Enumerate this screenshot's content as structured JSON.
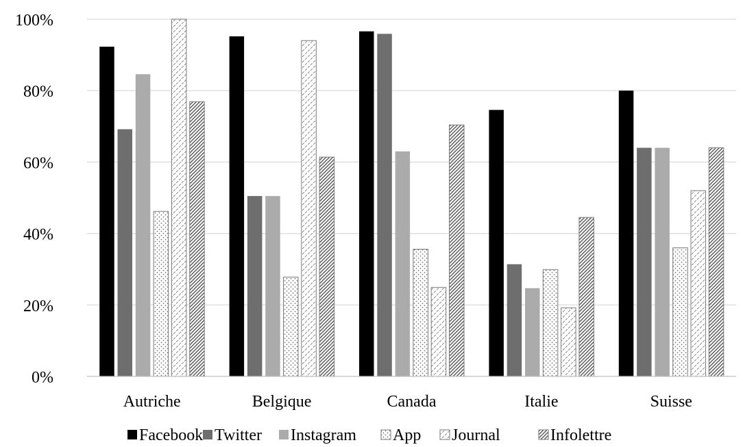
{
  "chart_data": {
    "type": "bar",
    "categories": [
      "Autriche",
      "Belgique",
      "Canada",
      "Italie",
      "Suisse"
    ],
    "series": [
      {
        "name": "Facebook",
        "values": [
          92.3,
          95.2,
          96.6,
          74.6,
          80.0
        ],
        "fill": "solid",
        "color": "#000000"
      },
      {
        "name": "Twitter",
        "values": [
          69.2,
          50.5,
          95.9,
          31.4,
          64.0
        ],
        "fill": "solid",
        "color": "#6e6e6e"
      },
      {
        "name": "Instagram",
        "values": [
          84.6,
          50.5,
          63.0,
          24.7,
          64.0
        ],
        "fill": "solid",
        "color": "#ababab"
      },
      {
        "name": "App",
        "values": [
          46.2,
          27.8,
          35.6,
          29.9,
          36.0
        ],
        "fill": "dots",
        "color": "#808080"
      },
      {
        "name": "Journal",
        "values": [
          100.0,
          94.0,
          24.9,
          19.2,
          52.0
        ],
        "fill": "dashes",
        "color": "#a0a0a0"
      },
      {
        "name": "Infolettre",
        "values": [
          76.9,
          61.4,
          70.4,
          44.5,
          64.0
        ],
        "fill": "diagonal",
        "color": "#555555"
      }
    ],
    "y_ticks": [
      "0%",
      "20%",
      "40%",
      "60%",
      "80%",
      "100%"
    ],
    "ylim": [
      0,
      100
    ],
    "grid": true,
    "legend_position": "bottom",
    "title": "",
    "xlabel": "",
    "ylabel": ""
  }
}
